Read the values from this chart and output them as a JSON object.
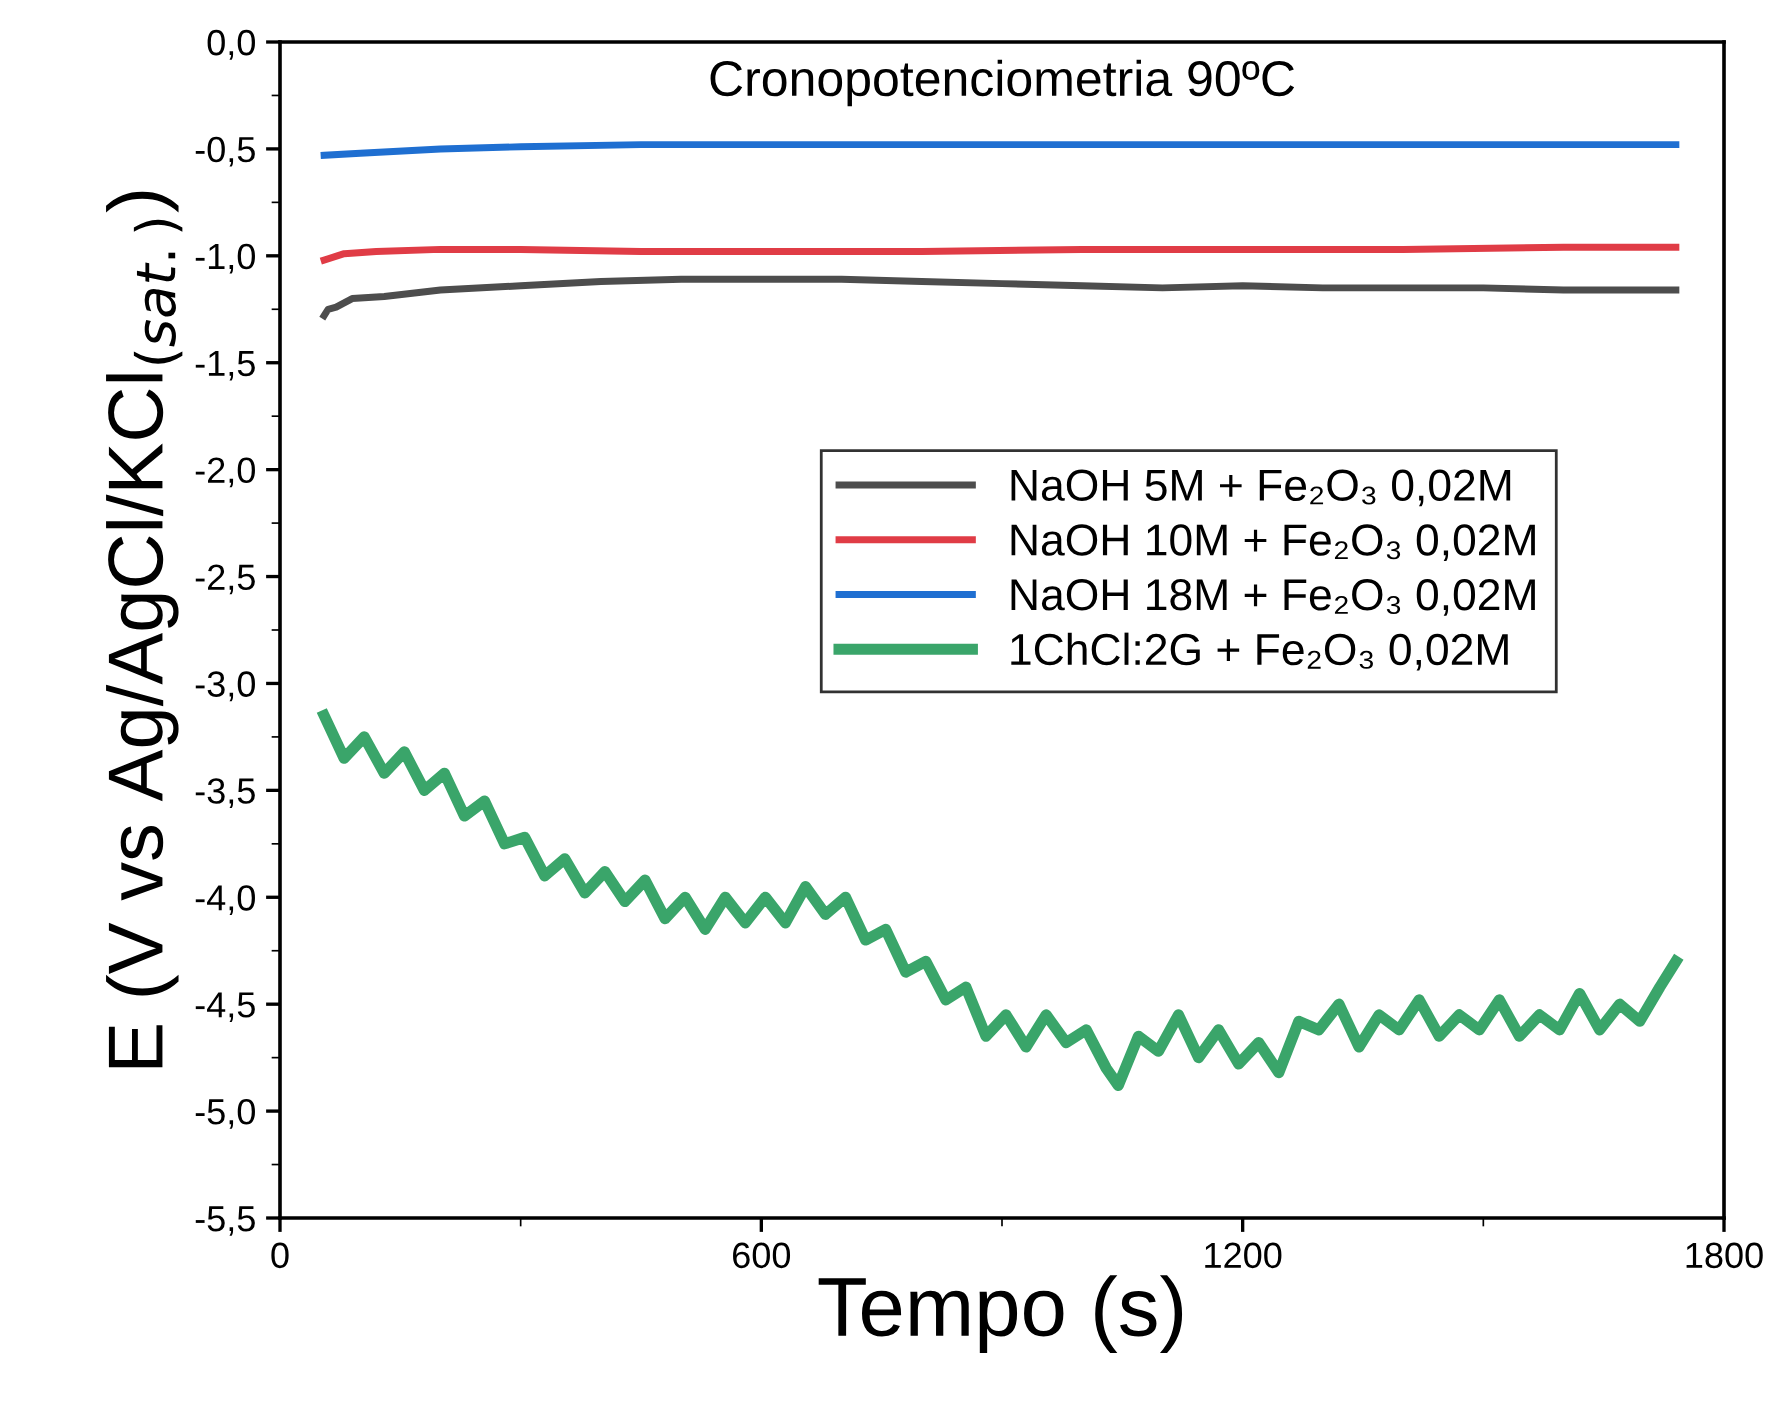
{
  "chart_data": {
    "type": "line",
    "title": "Cronopotenciometria 90ºC",
    "xlabel": "Tempo (s)",
    "ylabel": "E (V vs Ag/AgCl/KCl$_{(sat.)}$)",
    "xlim": [
      0,
      1800
    ],
    "xticks": [
      0,
      600,
      1200,
      1800
    ],
    "ylim": [
      -5.5,
      0
    ],
    "yticks": [
      {
        "value": 0,
        "label": "0,0"
      },
      {
        "value": -0.5,
        "label": "-0,5"
      },
      {
        "value": -1,
        "label": "-1,0"
      },
      {
        "value": -1.5,
        "label": "-1,5"
      },
      {
        "value": -2,
        "label": "-2,0"
      },
      {
        "value": -2.5,
        "label": "-2,5"
      },
      {
        "value": -3,
        "label": "-3,0"
      },
      {
        "value": -3.5,
        "label": "-3,5"
      },
      {
        "value": -4,
        "label": "-4,0"
      },
      {
        "value": -4.5,
        "label": "-4,5"
      },
      {
        "value": -5,
        "label": "-5,0"
      },
      {
        "value": -5.5,
        "label": "-5,5"
      }
    ],
    "grid": false,
    "legend": "right",
    "line_style": "solid",
    "marker": "none",
    "series": [
      {
        "name": "NaOH 5M + Fe₂O₃ 0,02M",
        "color": "#4d4d4d",
        "x": [
          55,
          60,
          70,
          90,
          130,
          200,
          300,
          400,
          500,
          600,
          700,
          800,
          900,
          1000,
          1100,
          1200,
          1300,
          1400,
          1500,
          1600,
          1740
        ],
        "values": [
          -1.28,
          -1.25,
          -1.24,
          -1.2,
          -1.19,
          -1.16,
          -1.14,
          -1.12,
          -1.11,
          -1.11,
          -1.11,
          -1.12,
          -1.13,
          -1.14,
          -1.15,
          -1.14,
          -1.15,
          -1.15,
          -1.15,
          -1.16,
          -1.16
        ]
      },
      {
        "name": "NaOH 10M + Fe₂O₃ 0,02M",
        "color": "#e03c46",
        "x": [
          55,
          80,
          120,
          200,
          300,
          450,
          600,
          800,
          1000,
          1200,
          1400,
          1600,
          1740
        ],
        "values": [
          -1.02,
          -0.99,
          -0.98,
          -0.97,
          -0.97,
          -0.98,
          -0.98,
          -0.98,
          -0.97,
          -0.97,
          -0.97,
          -0.96,
          -0.96
        ]
      },
      {
        "name": "NaOH 18M + Fe₂O₃ 0,02M",
        "color": "#1f6fd1",
        "x": [
          55,
          100,
          200,
          300,
          450,
          600,
          900,
          1200,
          1500,
          1740
        ],
        "values": [
          -0.53,
          -0.52,
          -0.5,
          -0.49,
          -0.48,
          -0.48,
          -0.48,
          -0.48,
          -0.48,
          -0.48
        ]
      },
      {
        "name": "1ChCl:2G + Fe₂O₃ 0,02M",
        "color": "#3aa56a",
        "x": [
          55,
          80,
          105,
          130,
          155,
          180,
          205,
          230,
          255,
          280,
          305,
          330,
          355,
          380,
          405,
          430,
          455,
          480,
          505,
          530,
          555,
          580,
          605,
          630,
          655,
          680,
          705,
          730,
          755,
          780,
          805,
          830,
          855,
          880,
          905,
          930,
          955,
          980,
          1005,
          1030,
          1045,
          1070,
          1095,
          1120,
          1145,
          1170,
          1195,
          1220,
          1245,
          1270,
          1295,
          1320,
          1345,
          1370,
          1395,
          1420,
          1445,
          1470,
          1495,
          1520,
          1545,
          1570,
          1595,
          1620,
          1645,
          1670,
          1695,
          1720,
          1740
        ],
        "values": [
          -3.15,
          -3.35,
          -3.25,
          -3.42,
          -3.32,
          -3.5,
          -3.42,
          -3.62,
          -3.55,
          -3.75,
          -3.72,
          -3.9,
          -3.82,
          -3.98,
          -3.88,
          -4.02,
          -3.92,
          -4.1,
          -4.0,
          -4.15,
          -4.0,
          -4.12,
          -4.0,
          -4.12,
          -3.95,
          -4.08,
          -4.0,
          -4.2,
          -4.15,
          -4.35,
          -4.3,
          -4.48,
          -4.42,
          -4.65,
          -4.55,
          -4.7,
          -4.55,
          -4.68,
          -4.62,
          -4.8,
          -4.88,
          -4.65,
          -4.72,
          -4.55,
          -4.75,
          -4.62,
          -4.78,
          -4.68,
          -4.82,
          -4.58,
          -4.62,
          -4.5,
          -4.7,
          -4.55,
          -4.62,
          -4.48,
          -4.65,
          -4.55,
          -4.62,
          -4.48,
          -4.65,
          -4.55,
          -4.62,
          -4.45,
          -4.62,
          -4.5,
          -4.58,
          -4.42,
          -4.3
        ]
      }
    ]
  }
}
